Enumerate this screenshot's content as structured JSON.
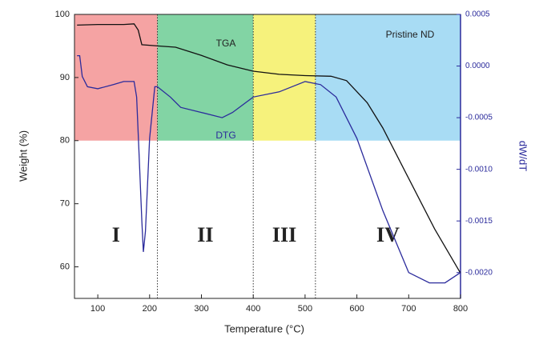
{
  "chart_data": {
    "type": "line",
    "title_note": null,
    "xlabel": "Temperature (°C)",
    "ylabel": "Weight (%)",
    "y2label": "dW/dT",
    "xlim": [
      55,
      800
    ],
    "xticks": [
      100,
      200,
      300,
      400,
      500,
      600,
      700,
      800
    ],
    "ylim": [
      55,
      100
    ],
    "yticks": [
      60,
      70,
      80,
      90,
      100
    ],
    "y2lim": [
      -0.00225,
      0.0005
    ],
    "y2ticks": [
      {
        "value": -0.002,
        "label": "-0.0020"
      },
      {
        "value": -0.0015,
        "label": "-0.0015"
      },
      {
        "value": -0.001,
        "label": "-0.0010"
      },
      -0.0005,
      {
        "value": 0,
        "label": "0.0000"
      },
      0.0005
    ],
    "regions": [
      {
        "label": "I",
        "start": 55,
        "end": 215,
        "top": 100,
        "bottom": 80,
        "color": "#f5a3a3"
      },
      {
        "label": "II",
        "start": 215,
        "end": 400,
        "top": 100,
        "bottom": 80,
        "color": "#82d4a4"
      },
      {
        "label": "III",
        "start": 400,
        "end": 520,
        "top": 100,
        "bottom": 80,
        "color": "#f6f27c"
      },
      {
        "label": "IV",
        "start": 520,
        "end": 800,
        "top": 100,
        "bottom": 80,
        "color": "#a8dcf4"
      }
    ],
    "annotation": "Pristine ND",
    "series": [
      {
        "name": "TGA",
        "color": "#111111",
        "x": [
          60,
          100,
          150,
          170,
          178,
          185,
          215,
          250,
          300,
          350,
          400,
          450,
          500,
          550,
          580,
          620,
          650,
          700,
          750,
          800
        ],
        "values": [
          98.3,
          98.4,
          98.4,
          98.5,
          97.5,
          95.2,
          95,
          94.8,
          93.5,
          92,
          91,
          90.5,
          90.3,
          90.2,
          89.5,
          86,
          82,
          74,
          66,
          59
        ]
      },
      {
        "name": "DTG",
        "color": "#2b2b9c",
        "axis": "y2",
        "x": [
          60,
          65,
          70,
          80,
          100,
          130,
          150,
          170,
          175,
          180,
          185,
          188,
          192,
          200,
          210,
          215,
          240,
          260,
          300,
          340,
          360,
          400,
          450,
          500,
          530,
          560,
          600,
          650,
          700,
          740,
          770,
          800
        ],
        "values": [
          0.0001,
          0.0001,
          -0.0001,
          -0.0002,
          -0.00022,
          -0.00018,
          -0.00015,
          -0.00015,
          -0.0003,
          -0.0009,
          -0.0015,
          -0.0018,
          -0.0016,
          -0.0007,
          -0.0002,
          -0.0002,
          -0.0003,
          -0.0004,
          -0.00045,
          -0.0005,
          -0.00045,
          -0.0003,
          -0.00025,
          -0.00015,
          -0.00018,
          -0.0003,
          -0.0007,
          -0.0014,
          -0.002,
          -0.0021,
          -0.0021,
          -0.002
        ]
      }
    ]
  }
}
